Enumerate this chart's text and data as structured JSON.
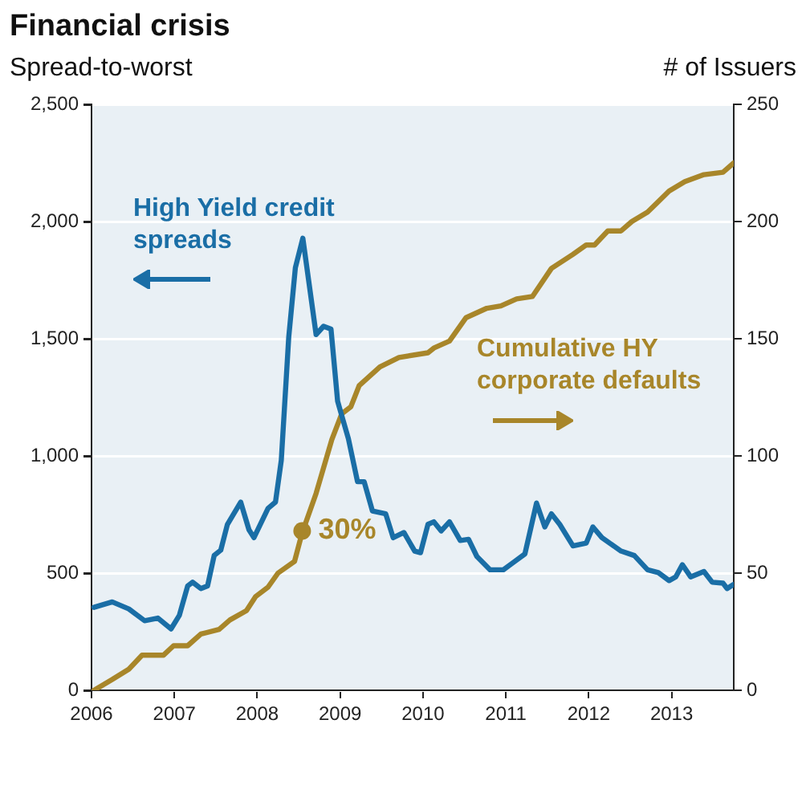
{
  "chart_data": {
    "type": "line",
    "title": "Financial crisis",
    "ylabel": "Spread-to-worst",
    "y2label": "# of Issuers",
    "xlim": [
      2006,
      2013.75
    ],
    "xticks": [
      {
        "value": 2006,
        "label": "2006"
      },
      {
        "value": 2007,
        "label": "2007"
      },
      {
        "value": 2008,
        "label": "2008"
      },
      {
        "value": 2009,
        "label": "2009"
      },
      {
        "value": 2010,
        "label": "2010"
      },
      {
        "value": 2011,
        "label": "2011"
      },
      {
        "value": 2012,
        "label": "2012"
      },
      {
        "value": 2013,
        "label": "2013"
      }
    ],
    "ylim": [
      0,
      2500
    ],
    "yticks": [
      0,
      500,
      {
        "value": 1000,
        "label": "1,000"
      },
      {
        "value": 1500,
        "label": "1,500"
      },
      {
        "value": 2000,
        "label": "2,000"
      },
      {
        "value": 2500,
        "label": "2,500"
      }
    ],
    "y2lim": [
      0,
      250
    ],
    "y2ticks": [
      0,
      50,
      100,
      150,
      200,
      250
    ],
    "grid": "y",
    "legend": false,
    "marker": "none",
    "line_style": "solid",
    "annotations": [
      "30%"
    ],
    "series": [
      {
        "name": "High Yield credit spreads",
        "color": "#1a6ea6",
        "x": [
          2006.03,
          2006.25,
          2006.45,
          2006.64,
          2006.8,
          2006.96,
          2007.06,
          2007.16,
          2007.22,
          2007.32,
          2007.4,
          2007.48,
          2007.56,
          2007.64,
          2007.8,
          2007.9,
          2007.96,
          2008.13,
          2008.22,
          2008.29,
          2008.38,
          2008.46,
          2008.55,
          2008.71,
          2008.8,
          2008.89,
          2008.97,
          2009.1,
          2009.21,
          2009.29,
          2009.39,
          2009.55,
          2009.64,
          2009.77,
          2009.9,
          2009.97,
          2010.06,
          2010.13,
          2010.22,
          2010.32,
          2010.45,
          2010.55,
          2010.65,
          2010.81,
          2010.97,
          2011.1,
          2011.23,
          2011.37,
          2011.47,
          2011.55,
          2011.65,
          2011.81,
          2011.97,
          2012.05,
          2012.16,
          2012.39,
          2012.55,
          2012.71,
          2012.84,
          2012.97,
          2013.05,
          2013.13,
          2013.23,
          2013.39,
          2013.49,
          2013.62,
          2013.67,
          2013.75
        ],
        "values": [
          354,
          377,
          347,
          297,
          308,
          262,
          320,
          445,
          461,
          434,
          445,
          575,
          598,
          708,
          803,
          685,
          651,
          776,
          803,
          981,
          1507,
          1803,
          1929,
          1518,
          1553,
          1541,
          1233,
          1073,
          890,
          890,
          765,
          753,
          651,
          673,
          594,
          587,
          708,
          719,
          680,
          719,
          639,
          644,
          571,
          514,
          514,
          548,
          582,
          799,
          697,
          753,
          708,
          616,
          628,
          697,
          651,
          594,
          575,
          514,
          502,
          468,
          484,
          536,
          484,
          507,
          461,
          457,
          434,
          452
        ]
      },
      {
        "name": "Cumulative HY corporate defaults",
        "color": "#a8862a",
        "axis": "y2",
        "x": [
          2006.03,
          2006.25,
          2006.45,
          2006.61,
          2006.87,
          2006.99,
          2007.16,
          2007.32,
          2007.54,
          2007.67,
          2007.87,
          2007.98,
          2008.13,
          2008.25,
          2008.45,
          2008.54,
          2008.71,
          2008.9,
          2009.02,
          2009.13,
          2009.23,
          2009.48,
          2009.71,
          2010.06,
          2010.13,
          2010.32,
          2010.52,
          2010.77,
          2010.94,
          2011.13,
          2011.32,
          2011.55,
          2011.81,
          2011.97,
          2012.07,
          2012.23,
          2012.39,
          2012.52,
          2012.71,
          2012.97,
          2013.16,
          2013.39,
          2013.62,
          2013.75
        ],
        "values": [
          0,
          4.6,
          9,
          15,
          15,
          19,
          19,
          24,
          26,
          30,
          34,
          40,
          44,
          50,
          55,
          67,
          84,
          107,
          118,
          121,
          130,
          138,
          142,
          144,
          146,
          149,
          159,
          163,
          164,
          167,
          168,
          180,
          186,
          190,
          190,
          196,
          196,
          200,
          204,
          213,
          217,
          220,
          221,
          225
        ]
      }
    ]
  }
}
